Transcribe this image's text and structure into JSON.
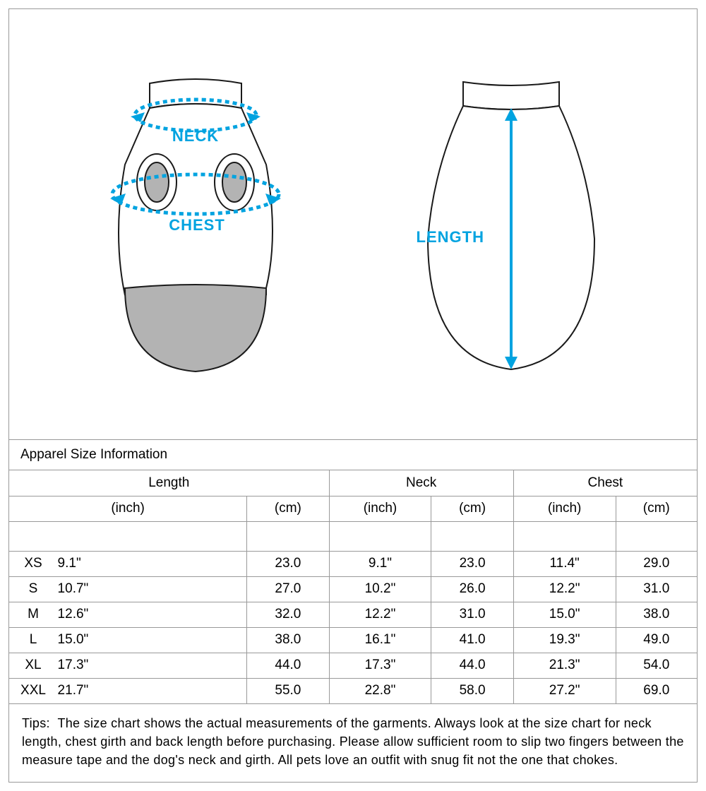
{
  "colors": {
    "accent": "#00a3e0",
    "outline": "#1a1a1a",
    "fill_light": "#ffffff",
    "fill_gray": "#b3b3b3",
    "border": "#999999"
  },
  "diagram": {
    "labels": {
      "neck": "NECK",
      "chest": "CHEST",
      "length": "LENGTH"
    },
    "stroke_width": 2,
    "arrow_color": "#00a3e0"
  },
  "table": {
    "title": "Apparel Size Information",
    "group_headers": [
      "Length",
      "Neck",
      "Chest"
    ],
    "unit_headers": [
      "(inch)",
      "(cm)",
      "(inch)",
      "(cm)",
      "(inch)",
      "(cm)"
    ],
    "rows": [
      {
        "size": "XS",
        "length_in": "9.1\"",
        "length_cm": "23.0",
        "neck_in": "9.1\"",
        "neck_cm": "23.0",
        "chest_in": "11.4\"",
        "chest_cm": "29.0"
      },
      {
        "size": "S",
        "length_in": "10.7\"",
        "length_cm": "27.0",
        "neck_in": "10.2\"",
        "neck_cm": "26.0",
        "chest_in": "12.2\"",
        "chest_cm": "31.0"
      },
      {
        "size": "M",
        "length_in": "12.6\"",
        "length_cm": "32.0",
        "neck_in": "12.2\"",
        "neck_cm": "31.0",
        "chest_in": "15.0\"",
        "chest_cm": "38.0"
      },
      {
        "size": "L",
        "length_in": "15.0\"",
        "length_cm": "38.0",
        "neck_in": "16.1\"",
        "neck_cm": "41.0",
        "chest_in": "19.3\"",
        "chest_cm": "49.0"
      },
      {
        "size": "XL",
        "length_in": "17.3\"",
        "length_cm": "44.0",
        "neck_in": "17.3\"",
        "neck_cm": "44.0",
        "chest_in": "21.3\"",
        "chest_cm": "54.0"
      },
      {
        "size": "XXL",
        "length_in": "21.7\"",
        "length_cm": "55.0",
        "neck_in": "22.8\"",
        "neck_cm": "58.0",
        "chest_in": "27.2\"",
        "chest_cm": "69.0"
      }
    ]
  },
  "tips_label": "Tips:",
  "tips_text": "The size chart shows the actual measurements of the garments. Always look at the size chart for neck length, chest girth and back length before purchasing. Please allow sufficient room to slip two fingers between the measure tape and the dog's neck and girth. All pets love an outfit with snug fit not the one that chokes."
}
